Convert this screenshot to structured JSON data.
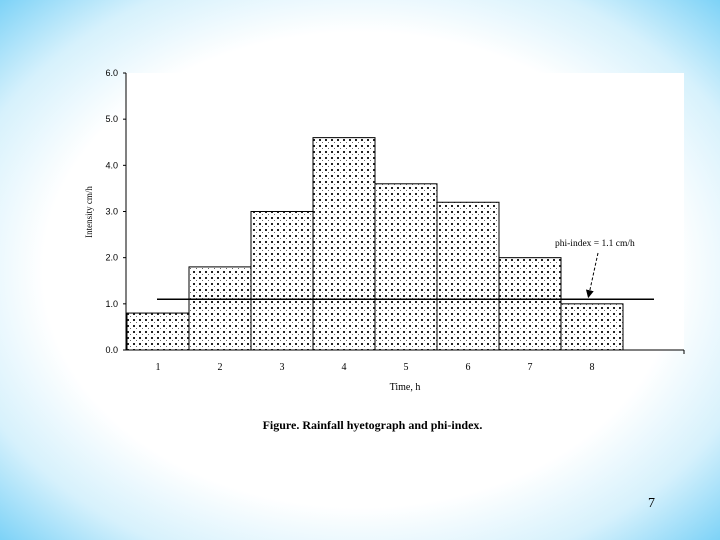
{
  "caption": "Figure. Rainfall hyetograph and phi-index.",
  "page_number": "7",
  "chart_data": {
    "type": "bar",
    "title": "",
    "xlabel": "Time, h",
    "ylabel": "Intensity cm/h",
    "categories": [
      "1",
      "2",
      "3",
      "4",
      "5",
      "6",
      "7",
      "8"
    ],
    "series": [
      {
        "values": [
          0.8,
          1.8,
          3.0,
          4.6,
          3.6,
          3.2,
          2.0,
          1.0
        ]
      }
    ],
    "ylim": [
      0,
      6
    ],
    "y_ticks": [
      "0.0",
      "1.0",
      "2.0",
      "3.0",
      "4.0",
      "5.0",
      "6.0"
    ],
    "grid": false,
    "bar_fill": "dotted-hatch",
    "phi_index": {
      "value": 1.1,
      "label": "phi-index = 1.1 cm/h"
    }
  }
}
